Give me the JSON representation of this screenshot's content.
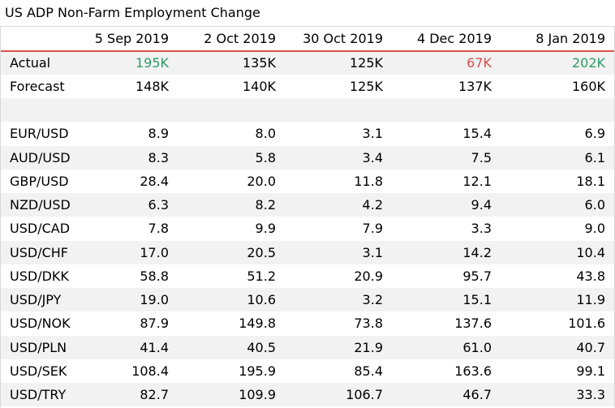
{
  "title": "US ADP Non-Farm Employment Change",
  "columns": [
    "5 Sep 2019",
    "2 Oct 2019",
    "30 Oct 2019",
    "4 Dec 2019",
    "8 Jan 2019"
  ],
  "actual": {
    "label": "Actual",
    "values": [
      "195K",
      "135K",
      "125K",
      "67K",
      "202K"
    ]
  },
  "forecast": {
    "label": "Forecast",
    "values": [
      "148K",
      "140K",
      "125K",
      "137K",
      "160K"
    ]
  },
  "colors": {
    "beat": "#2e9c68",
    "miss": "#d6504c",
    "header_rule": "#d9534f"
  },
  "pairs": [
    {
      "pair": "EUR/USD",
      "values": [
        "8.9",
        "8.0",
        "3.1",
        "15.4",
        "6.9"
      ]
    },
    {
      "pair": "AUD/USD",
      "values": [
        "8.3",
        "5.8",
        "3.4",
        "7.5",
        "6.1"
      ]
    },
    {
      "pair": "GBP/USD",
      "values": [
        "28.4",
        "20.0",
        "11.8",
        "12.1",
        "18.1"
      ]
    },
    {
      "pair": "NZD/USD",
      "values": [
        "6.3",
        "8.2",
        "4.2",
        "9.4",
        "6.0"
      ]
    },
    {
      "pair": "USD/CAD",
      "values": [
        "7.8",
        "9.9",
        "7.9",
        "3.3",
        "9.0"
      ]
    },
    {
      "pair": "USD/CHF",
      "values": [
        "17.0",
        "20.5",
        "3.1",
        "14.2",
        "10.4"
      ]
    },
    {
      "pair": "USD/DKK",
      "values": [
        "58.8",
        "51.2",
        "20.9",
        "95.7",
        "43.8"
      ]
    },
    {
      "pair": "USD/JPY",
      "values": [
        "19.0",
        "10.6",
        "3.2",
        "15.1",
        "11.9"
      ]
    },
    {
      "pair": "USD/NOK",
      "values": [
        "87.9",
        "149.8",
        "73.8",
        "137.6",
        "101.6"
      ]
    },
    {
      "pair": "USD/PLN",
      "values": [
        "41.4",
        "40.5",
        "21.9",
        "61.0",
        "40.7"
      ]
    },
    {
      "pair": "USD/SEK",
      "values": [
        "108.4",
        "195.9",
        "85.4",
        "163.6",
        "99.1"
      ]
    },
    {
      "pair": "USD/TRY",
      "values": [
        "82.7",
        "109.9",
        "106.7",
        "46.7",
        "33.3"
      ]
    }
  ]
}
